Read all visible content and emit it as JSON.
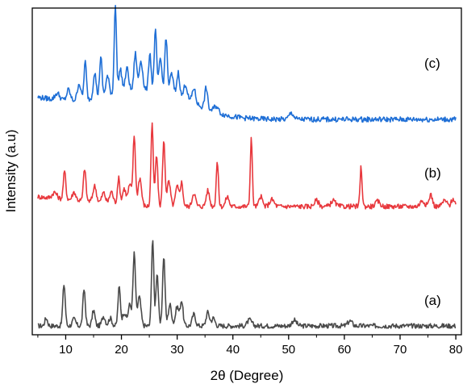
{
  "chart_data": {
    "type": "line",
    "title": "",
    "xlabel": "2θ (Degree)",
    "ylabel": "Intensity (a.u)",
    "xlim": [
      4,
      81
    ],
    "xticks": [
      10,
      20,
      30,
      40,
      50,
      60,
      70,
      80
    ],
    "yticks_shown": false,
    "grid": false,
    "legend": "none",
    "stacked_offset": true,
    "series": [
      {
        "name": "(a)",
        "color": "#4a4a4a",
        "baseline": 0.0,
        "peaks": [
          [
            6.5,
            0.08,
            0.25
          ],
          [
            9.7,
            0.43,
            0.22
          ],
          [
            11.5,
            0.07,
            0.3
          ],
          [
            13.3,
            0.38,
            0.22
          ],
          [
            15.0,
            0.16,
            0.25
          ],
          [
            16.8,
            0.1,
            0.3
          ],
          [
            18.0,
            0.08,
            0.3
          ],
          [
            19.6,
            0.4,
            0.22
          ],
          [
            20.5,
            0.14,
            0.3
          ],
          [
            21.5,
            0.22,
            0.3
          ],
          [
            22.3,
            0.74,
            0.22
          ],
          [
            23.2,
            0.3,
            0.3
          ],
          [
            25.6,
            0.9,
            0.2
          ],
          [
            26.4,
            0.55,
            0.22
          ],
          [
            27.6,
            0.72,
            0.22
          ],
          [
            28.7,
            0.22,
            0.3
          ],
          [
            30.0,
            0.2,
            0.3
          ],
          [
            30.8,
            0.26,
            0.25
          ],
          [
            33.0,
            0.12,
            0.3
          ],
          [
            35.5,
            0.14,
            0.3
          ],
          [
            36.5,
            0.08,
            0.3
          ],
          [
            43.0,
            0.06,
            0.4
          ],
          [
            51.0,
            0.06,
            0.4
          ],
          [
            61.0,
            0.05,
            0.4
          ]
        ]
      },
      {
        "name": "(b)",
        "color": "#e8383d",
        "baseline": 0.05,
        "peaks": [
          [
            8.0,
            0.06,
            0.4
          ],
          [
            9.8,
            0.28,
            0.22
          ],
          [
            11.5,
            0.08,
            0.3
          ],
          [
            13.4,
            0.33,
            0.22
          ],
          [
            15.2,
            0.16,
            0.3
          ],
          [
            16.8,
            0.1,
            0.3
          ],
          [
            18.2,
            0.12,
            0.3
          ],
          [
            19.5,
            0.26,
            0.22
          ],
          [
            20.5,
            0.16,
            0.3
          ],
          [
            21.5,
            0.2,
            0.3
          ],
          [
            22.3,
            0.7,
            0.22
          ],
          [
            23.3,
            0.28,
            0.3
          ],
          [
            25.5,
            0.84,
            0.2
          ],
          [
            26.3,
            0.52,
            0.22
          ],
          [
            27.6,
            0.66,
            0.22
          ],
          [
            28.5,
            0.25,
            0.3
          ],
          [
            30.0,
            0.2,
            0.3
          ],
          [
            30.8,
            0.24,
            0.25
          ],
          [
            33.0,
            0.14,
            0.3
          ],
          [
            35.5,
            0.16,
            0.3
          ],
          [
            37.2,
            0.45,
            0.2
          ],
          [
            39.0,
            0.1,
            0.3
          ],
          [
            43.3,
            0.7,
            0.18
          ],
          [
            45.0,
            0.1,
            0.3
          ],
          [
            47.0,
            0.07,
            0.4
          ],
          [
            55.0,
            0.06,
            0.4
          ],
          [
            58.0,
            0.06,
            0.4
          ],
          [
            63.0,
            0.4,
            0.18
          ],
          [
            66.0,
            0.05,
            0.4
          ],
          [
            74.0,
            0.06,
            0.4
          ],
          [
            75.5,
            0.12,
            0.3
          ],
          [
            78.0,
            0.06,
            0.4
          ],
          [
            79.5,
            0.08,
            0.3
          ]
        ]
      },
      {
        "name": "(c)",
        "color": "#1f6fd6",
        "baseline": 0.0,
        "hump": {
          "center": 26,
          "height": 0.28,
          "width": 6.5
        },
        "peaks": [
          [
            8.5,
            0.06,
            0.4
          ],
          [
            10.5,
            0.1,
            0.3
          ],
          [
            12.4,
            0.16,
            0.3
          ],
          [
            13.5,
            0.36,
            0.22
          ],
          [
            15.2,
            0.25,
            0.25
          ],
          [
            16.3,
            0.38,
            0.22
          ],
          [
            17.5,
            0.18,
            0.3
          ],
          [
            18.9,
            0.85,
            0.2
          ],
          [
            19.8,
            0.22,
            0.3
          ],
          [
            21.0,
            0.22,
            0.3
          ],
          [
            22.5,
            0.35,
            0.25
          ],
          [
            23.5,
            0.28,
            0.3
          ],
          [
            25.1,
            0.36,
            0.22
          ],
          [
            26.1,
            0.56,
            0.22
          ],
          [
            27.0,
            0.3,
            0.25
          ],
          [
            28.0,
            0.52,
            0.22
          ],
          [
            29.0,
            0.18,
            0.3
          ],
          [
            30.2,
            0.22,
            0.25
          ],
          [
            31.5,
            0.14,
            0.3
          ],
          [
            33.0,
            0.14,
            0.3
          ],
          [
            35.2,
            0.2,
            0.25
          ],
          [
            37.0,
            0.06,
            0.4
          ],
          [
            50.5,
            0.06,
            0.4
          ]
        ]
      }
    ]
  }
}
